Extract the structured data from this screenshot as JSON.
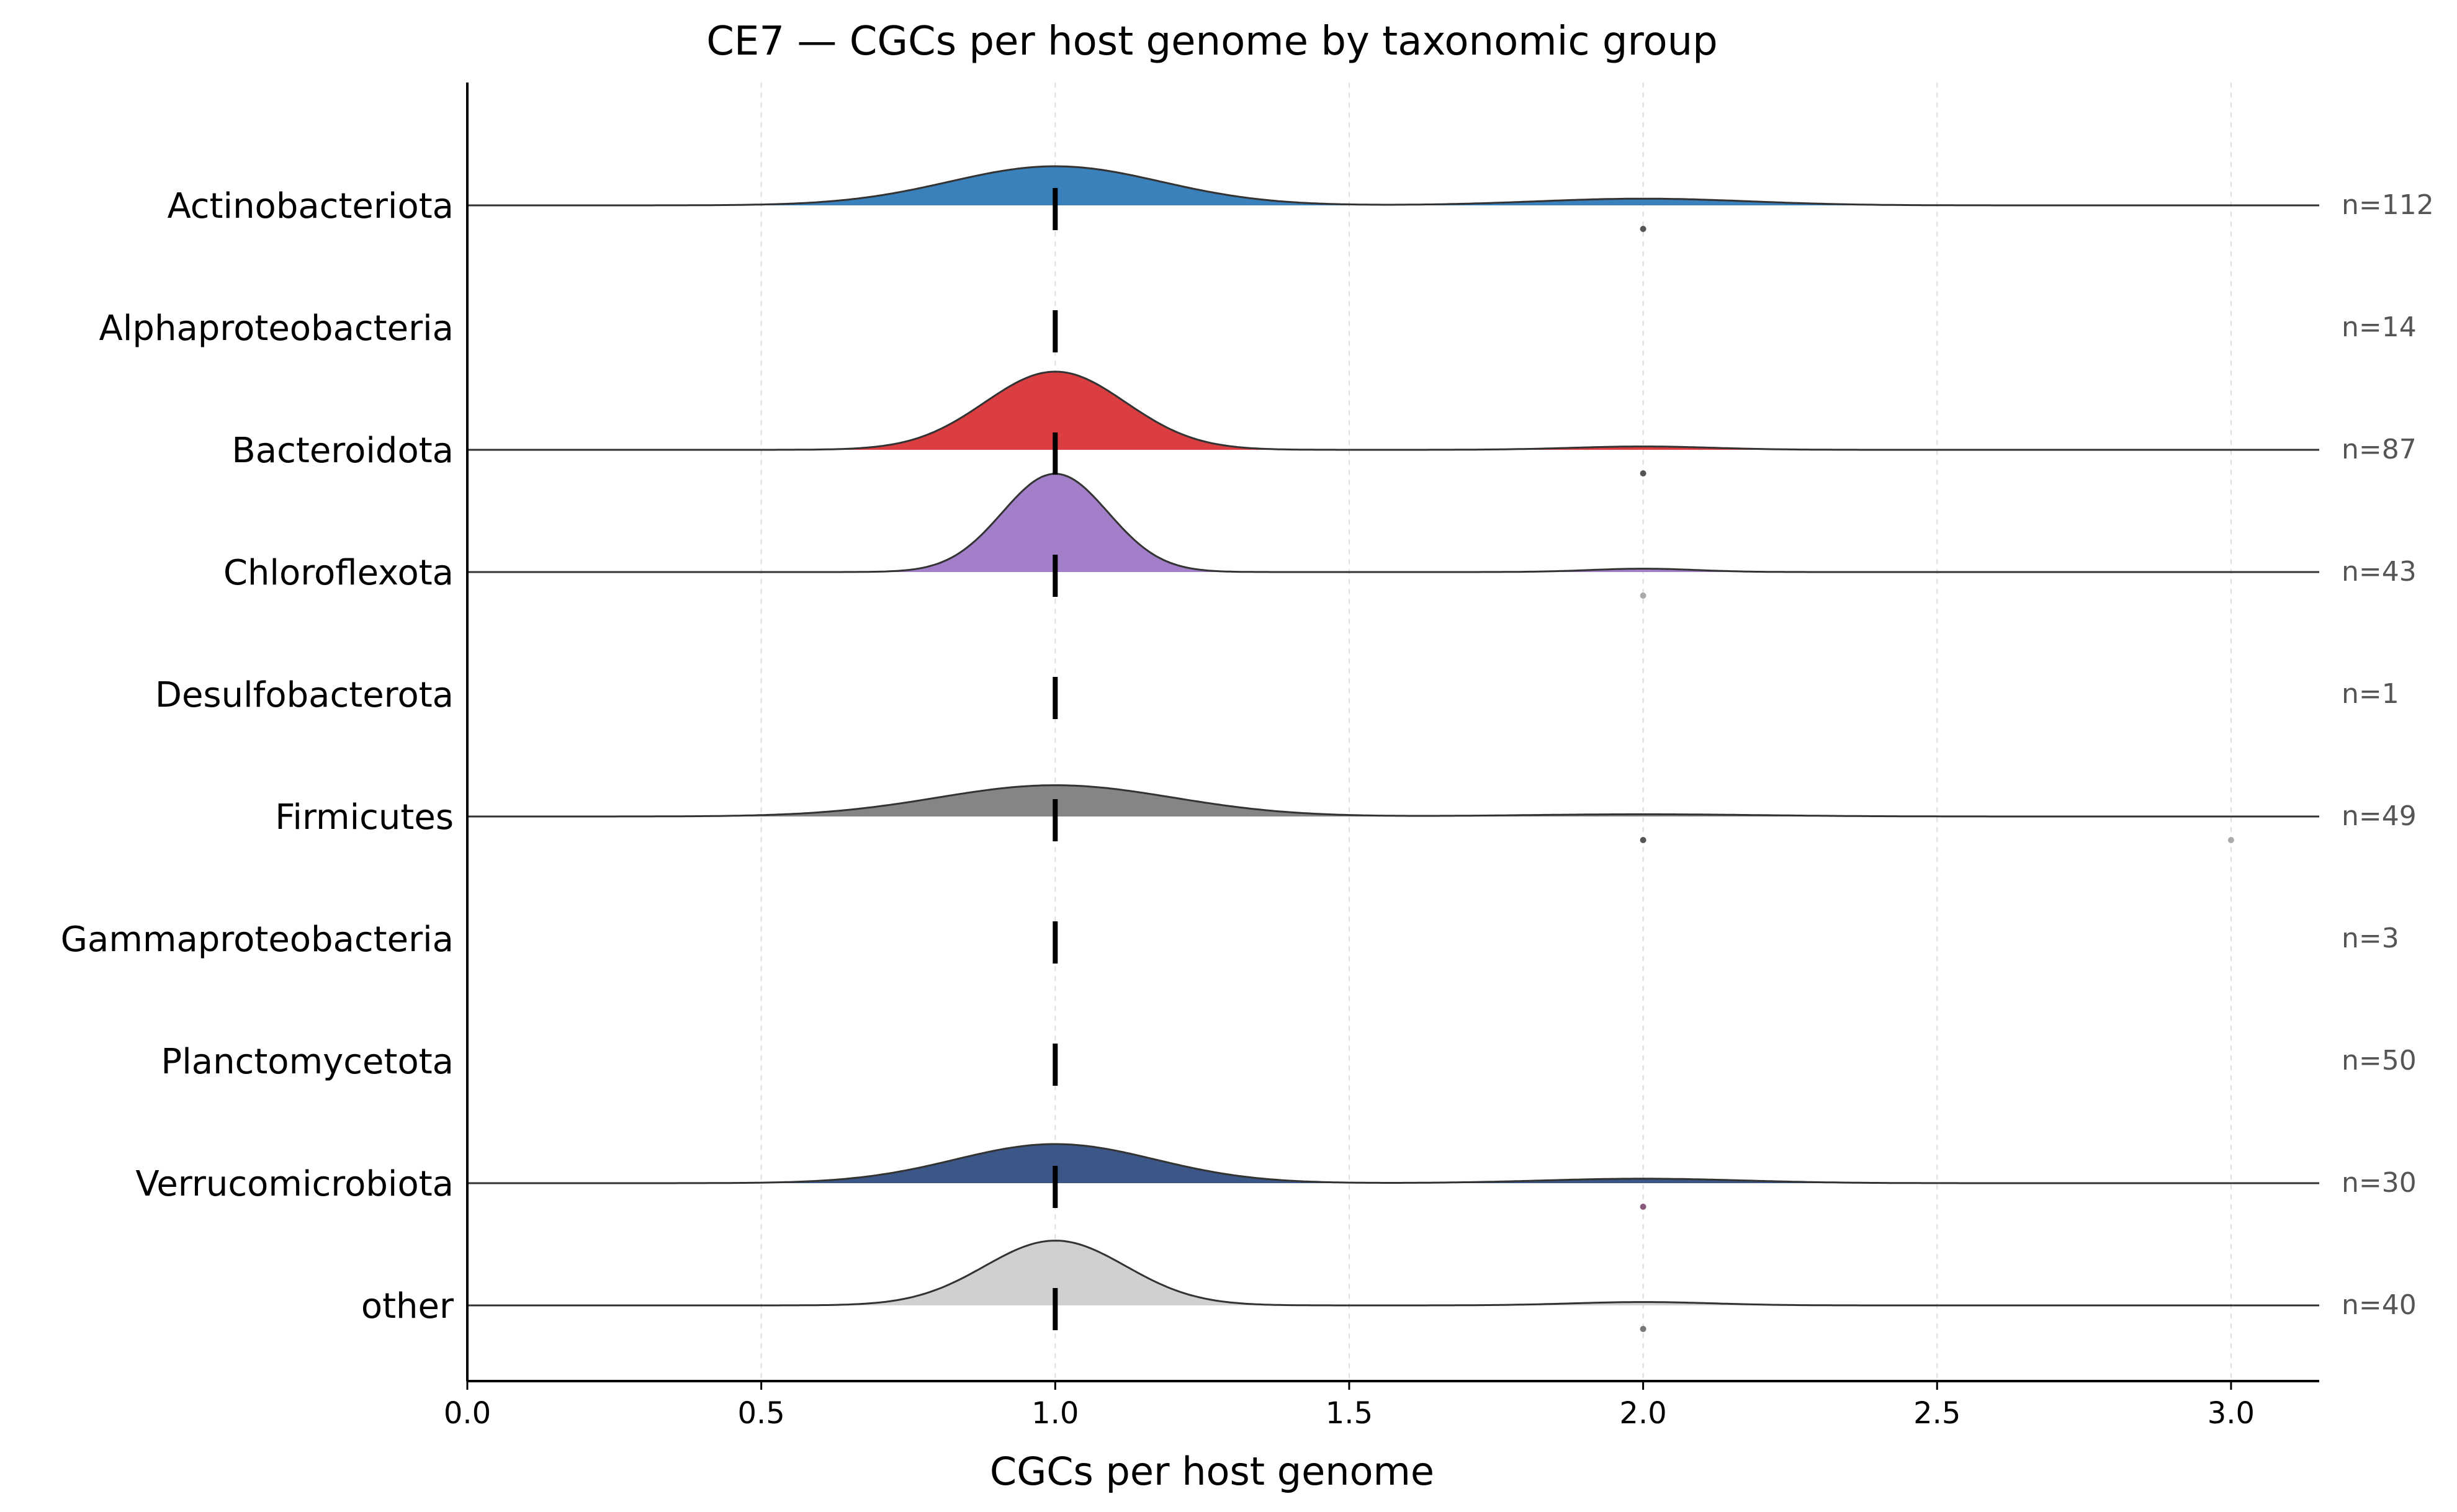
{
  "chart_data": {
    "type": "ridgeline",
    "title": "CE7 — CGCs per host genome by taxonomic group",
    "xlabel": "CGCs per host genome",
    "ylabel": "",
    "xlim": [
      0.0,
      3.15
    ],
    "xticks": [
      0.0,
      0.5,
      1.0,
      1.5,
      2.0,
      2.5,
      3.0
    ],
    "xtick_labels": [
      "0.0",
      "0.5",
      "1.0",
      "1.5",
      "2.0",
      "2.5",
      "3.0"
    ],
    "grid": "vertical dashed",
    "median_marker": "vertical black dash",
    "groups": [
      {
        "name": "Actinobacteriota",
        "n": 112,
        "n_label": "n=112",
        "median": 1.0,
        "color": "#3a80bb",
        "peaks": [
          {
            "x": 1.0,
            "height": 0.35,
            "width": 0.18
          },
          {
            "x": 2.0,
            "height": 0.06,
            "width": 0.18
          }
        ],
        "outliers": [
          {
            "x": 2.0,
            "color": "#555555"
          }
        ]
      },
      {
        "name": "Alphaproteobacteria",
        "n": 14,
        "n_label": "n=14",
        "median": 1.0,
        "color": "#3a80bb",
        "peaks": [],
        "outliers": []
      },
      {
        "name": "Bacteroidota",
        "n": 87,
        "n_label": "n=87",
        "median": 1.0,
        "color": "#db3e41",
        "peaks": [
          {
            "x": 1.0,
            "height": 0.7,
            "width": 0.12
          },
          {
            "x": 2.0,
            "height": 0.03,
            "width": 0.12
          }
        ],
        "outliers": [
          {
            "x": 2.0,
            "color": "#555555"
          }
        ]
      },
      {
        "name": "Chloroflexota",
        "n": 43,
        "n_label": "n=43",
        "median": 1.0,
        "color": "#a27fc8",
        "peaks": [
          {
            "x": 1.0,
            "height": 0.88,
            "width": 0.09
          },
          {
            "x": 2.0,
            "height": 0.03,
            "width": 0.09
          }
        ],
        "outliers": [
          {
            "x": 2.0,
            "color": "#aaaaaa"
          }
        ]
      },
      {
        "name": "Desulfobacterota",
        "n": 1,
        "n_label": "n=1",
        "median": 1.0,
        "color": "#888888",
        "peaks": [],
        "outliers": []
      },
      {
        "name": "Firmicutes",
        "n": 49,
        "n_label": "n=49",
        "median": 1.0,
        "color": "#858585",
        "peaks": [
          {
            "x": 1.0,
            "height": 0.28,
            "width": 0.2
          },
          {
            "x": 2.0,
            "height": 0.02,
            "width": 0.2
          }
        ],
        "outliers": [
          {
            "x": 2.0,
            "color": "#555555"
          },
          {
            "x": 3.0,
            "color": "#aaaaaa"
          }
        ]
      },
      {
        "name": "Gammaproteobacteria",
        "n": 3,
        "n_label": "n=3",
        "median": 1.0,
        "color": "#888888",
        "peaks": [],
        "outliers": []
      },
      {
        "name": "Planctomycetota",
        "n": 50,
        "n_label": "n=50",
        "median": 1.0,
        "color": "#888888",
        "peaks": [],
        "outliers": []
      },
      {
        "name": "Verrucomicrobiota",
        "n": 30,
        "n_label": "n=30",
        "median": 1.0,
        "color": "#3a5787",
        "peaks": [
          {
            "x": 1.0,
            "height": 0.35,
            "width": 0.17
          },
          {
            "x": 2.0,
            "height": 0.04,
            "width": 0.17
          }
        ],
        "outliers": [
          {
            "x": 2.0,
            "color": "#8a5a7a"
          }
        ]
      },
      {
        "name": "other",
        "n": 40,
        "n_label": "n=40",
        "median": 1.0,
        "color": "#d0d0d0",
        "peaks": [
          {
            "x": 1.0,
            "height": 0.58,
            "width": 0.12
          },
          {
            "x": 2.0,
            "height": 0.03,
            "width": 0.12
          }
        ],
        "outliers": [
          {
            "x": 2.0,
            "color": "#777777"
          }
        ]
      }
    ]
  }
}
